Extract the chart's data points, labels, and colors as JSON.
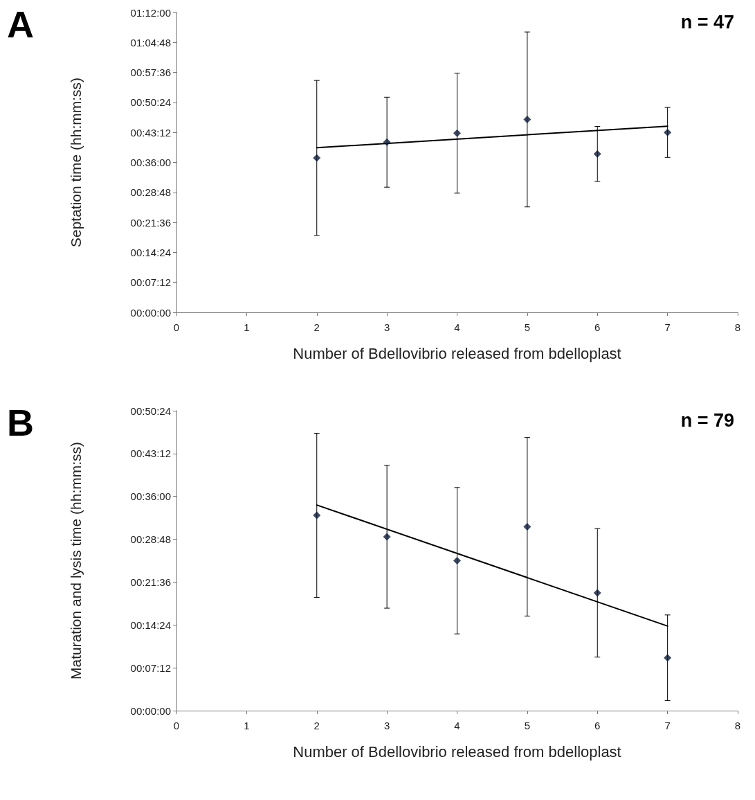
{
  "chart_data": [
    {
      "type": "scatter",
      "xlabel": "Number of Bdellovibrio released from bdelloplast",
      "ylabel": "Septation time (hh:mm:ss)",
      "annotations": [
        "A",
        "n = 47"
      ],
      "marker": "diamond",
      "grid": false,
      "xlim": [
        0,
        8
      ],
      "xticks": [
        0,
        1,
        2,
        3,
        4,
        5,
        6,
        7,
        8
      ],
      "ylim": [
        0,
        1.2
      ],
      "yticks": [
        {
          "value": 0,
          "label": "00:00:00"
        },
        {
          "value": 0.12,
          "label": "00:07:12"
        },
        {
          "value": 0.24,
          "label": "00:14:24"
        },
        {
          "value": 0.36,
          "label": "00:21:36"
        },
        {
          "value": 0.48,
          "label": "00:28:48"
        },
        {
          "value": 0.6,
          "label": "00:36:00"
        },
        {
          "value": 0.72,
          "label": "00:43:12"
        },
        {
          "value": 0.84,
          "label": "00:50:24"
        },
        {
          "value": 0.96,
          "label": "00:57:36"
        },
        {
          "value": 1.08,
          "label": "01:04:48"
        },
        {
          "value": 1.2,
          "label": "01:12:00"
        }
      ],
      "series": [
        {
          "color": "#0d1a3a",
          "x": [
            2,
            3,
            4,
            5,
            6,
            7
          ],
          "values": [
            0.618,
            0.681,
            0.717,
            0.772,
            0.634,
            0.72
          ],
          "errors": [
            0.31,
            0.18,
            0.24,
            0.35,
            0.11,
            0.1
          ]
        },
        {
          "type": "line",
          "color": "#000000",
          "marker": "none",
          "x": [
            2,
            7
          ],
          "values": [
            0.659,
            0.745
          ]
        }
      ]
    },
    {
      "type": "scatter",
      "xlabel": "Number of Bdellovibrio released from bdelloplast",
      "ylabel": "Maturation and lysis time (hh:mm:ss)",
      "annotations": [
        "B",
        "n = 79"
      ],
      "marker": "diamond",
      "grid": false,
      "xlim": [
        0,
        8
      ],
      "xticks": [
        0,
        1,
        2,
        3,
        4,
        5,
        6,
        7,
        8
      ],
      "ylim": [
        0,
        0.84
      ],
      "yticks": [
        {
          "value": 0,
          "label": "00:00:00"
        },
        {
          "value": 0.12,
          "label": "00:07:12"
        },
        {
          "value": 0.24,
          "label": "00:14:24"
        },
        {
          "value": 0.36,
          "label": "00:21:36"
        },
        {
          "value": 0.48,
          "label": "00:28:48"
        },
        {
          "value": 0.6,
          "label": "00:36:00"
        },
        {
          "value": 0.72,
          "label": "00:43:12"
        },
        {
          "value": 0.84,
          "label": "00:50:24"
        }
      ],
      "series": [
        {
          "color": "#0d1a3a",
          "x": [
            2,
            3,
            4,
            5,
            6,
            7
          ],
          "values": [
            0.547,
            0.487,
            0.42,
            0.515,
            0.33,
            0.148
          ],
          "errors": [
            0.23,
            0.2,
            0.205,
            0.25,
            0.18,
            0.12
          ]
        },
        {
          "type": "line",
          "color": "#000000",
          "marker": "none",
          "x": [
            2,
            7
          ],
          "values": [
            0.576,
            0.237
          ]
        }
      ]
    }
  ]
}
